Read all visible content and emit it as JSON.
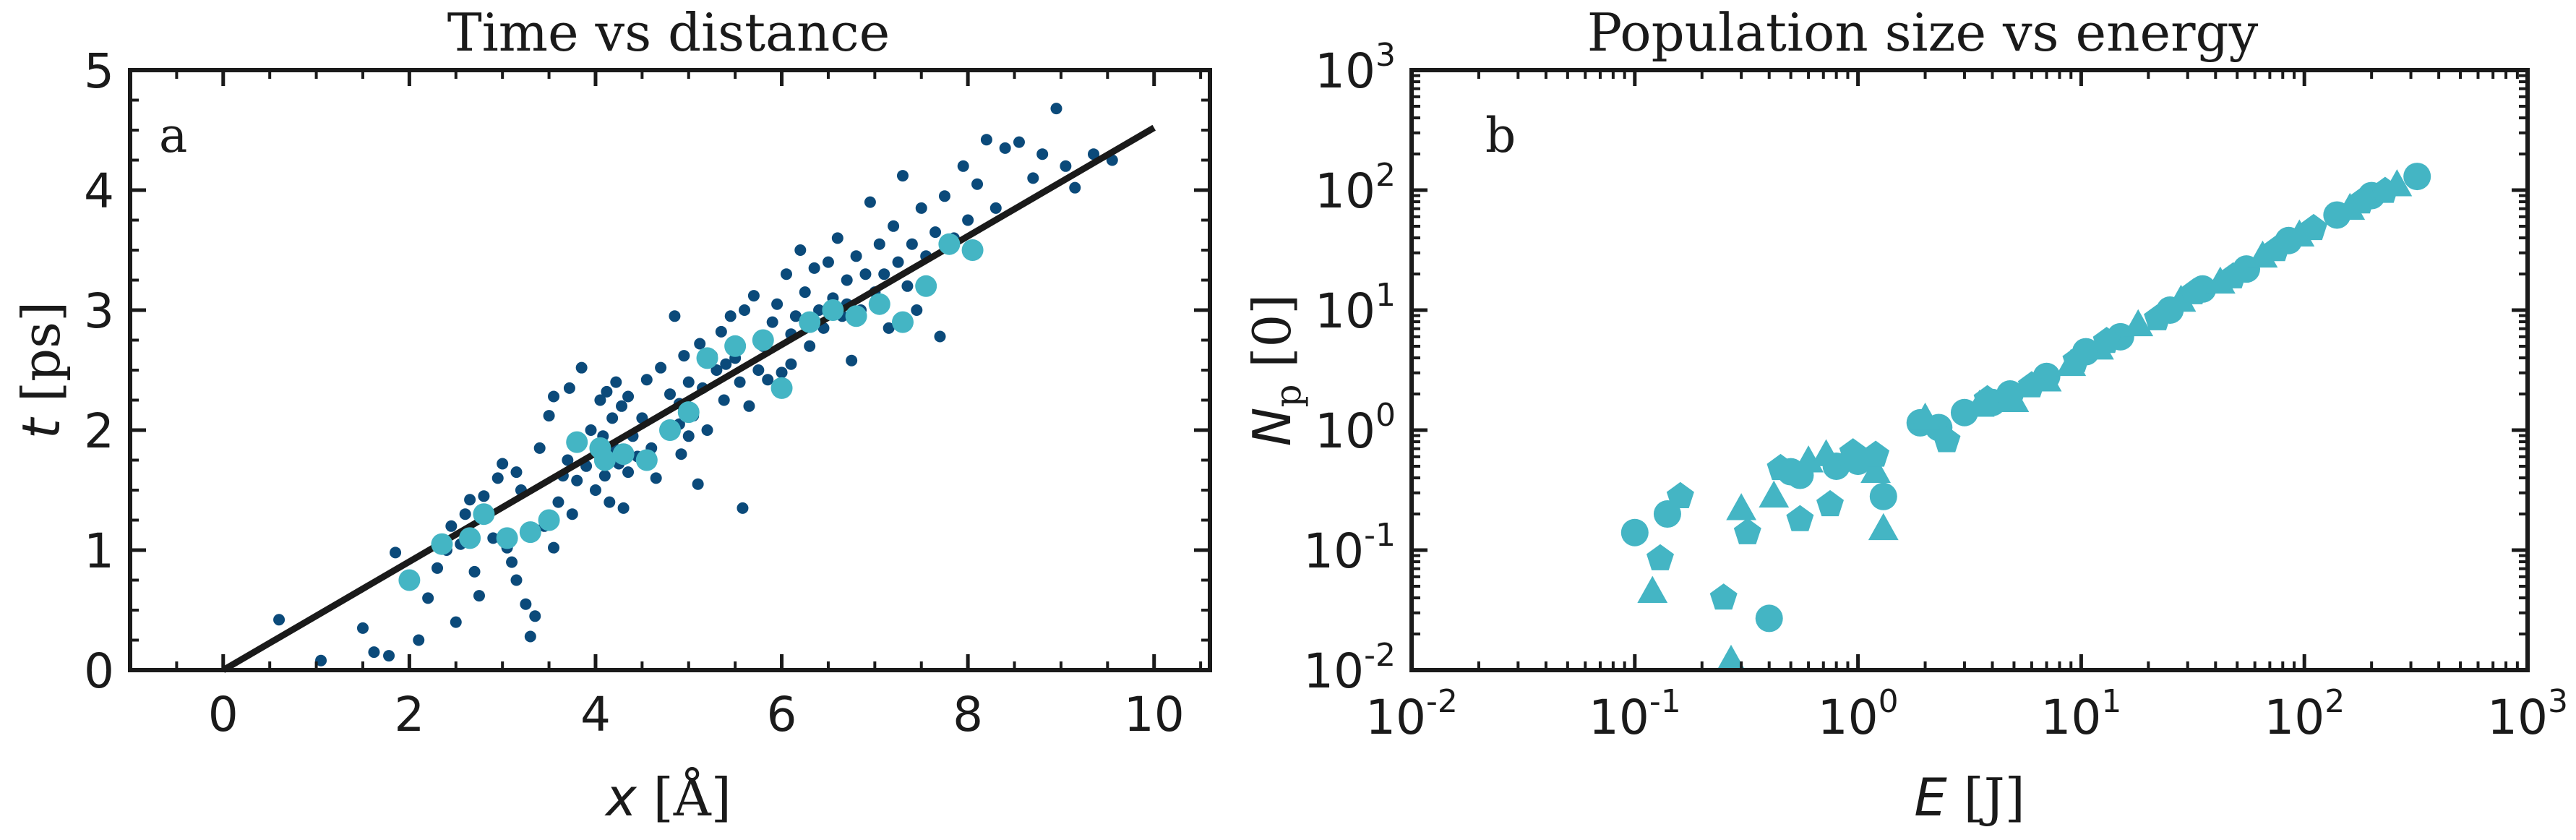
{
  "colors": {
    "dark": "#0b4a7a",
    "light": "#44b5c4",
    "line": "#1a1a1a",
    "axis": "#1a1a1a"
  },
  "chart_data": [
    {
      "type": "scatter",
      "panel_label": "a",
      "title": "Time vs distance",
      "xlabel_var": "x",
      "xlabel_unit": " [Å]",
      "ylabel_var": "t",
      "ylabel_unit": " [ps]",
      "xlim": [
        -1,
        10.6
      ],
      "ylim": [
        0,
        5
      ],
      "xticks": [
        0,
        2,
        4,
        6,
        8,
        10
      ],
      "yticks": [
        0,
        1,
        2,
        3,
        4,
        5
      ],
      "grid": false,
      "fit_line": [
        [
          0,
          0
        ],
        [
          10,
          4.52
        ]
      ],
      "series": [
        {
          "marker": "small-dot",
          "color": "#0b4a7a",
          "points": [
            [
              0.6,
              0.42
            ],
            [
              1.05,
              0.08
            ],
            [
              1.5,
              0.35
            ],
            [
              1.62,
              0.15
            ],
            [
              1.78,
              0.12
            ],
            [
              1.85,
              0.98
            ],
            [
              2.2,
              0.6
            ],
            [
              2.3,
              0.85
            ],
            [
              2.4,
              1.0
            ],
            [
              2.45,
              1.2
            ],
            [
              2.55,
              1.05
            ],
            [
              2.6,
              1.3
            ],
            [
              2.65,
              1.42
            ],
            [
              2.7,
              0.82
            ],
            [
              2.75,
              0.62
            ],
            [
              2.8,
              1.45
            ],
            [
              2.9,
              1.1
            ],
            [
              2.95,
              1.6
            ],
            [
              3.0,
              1.72
            ],
            [
              3.05,
              1.02
            ],
            [
              3.1,
              0.9
            ],
            [
              3.15,
              0.75
            ],
            [
              3.2,
              1.5
            ],
            [
              3.25,
              0.55
            ],
            [
              3.3,
              0.28
            ],
            [
              3.35,
              0.45
            ],
            [
              3.4,
              1.85
            ],
            [
              3.45,
              1.2
            ],
            [
              3.5,
              2.12
            ],
            [
              3.55,
              1.02
            ],
            [
              3.6,
              1.4
            ],
            [
              3.65,
              1.62
            ],
            [
              3.7,
              1.75
            ],
            [
              3.72,
              2.35
            ],
            [
              3.75,
              1.3
            ],
            [
              3.8,
              1.58
            ],
            [
              3.85,
              2.52
            ],
            [
              3.9,
              1.7
            ],
            [
              3.95,
              2.0
            ],
            [
              4.0,
              1.5
            ],
            [
              4.02,
              1.82
            ],
            [
              4.05,
              2.25
            ],
            [
              4.08,
              1.95
            ],
            [
              4.1,
              1.62
            ],
            [
              4.12,
              2.32
            ],
            [
              4.15,
              1.4
            ],
            [
              4.18,
              2.1
            ],
            [
              4.2,
              1.85
            ],
            [
              4.22,
              2.4
            ],
            [
              4.25,
              1.72
            ],
            [
              4.28,
              2.2
            ],
            [
              4.3,
              1.35
            ],
            [
              4.35,
              2.28
            ],
            [
              4.4,
              1.95
            ],
            [
              4.45,
              1.78
            ],
            [
              4.5,
              2.1
            ],
            [
              4.55,
              2.42
            ],
            [
              4.6,
              1.85
            ],
            [
              4.65,
              1.6
            ],
            [
              4.7,
              2.52
            ],
            [
              4.75,
              2.0
            ],
            [
              4.8,
              2.3
            ],
            [
              4.82,
              1.98
            ],
            [
              4.85,
              2.95
            ],
            [
              4.9,
              2.22
            ],
            [
              4.92,
              1.8
            ],
            [
              4.95,
              2.62
            ],
            [
              5.0,
              2.4
            ],
            [
              5.05,
              2.12
            ],
            [
              5.1,
              1.55
            ],
            [
              5.12,
              2.72
            ],
            [
              5.15,
              2.35
            ],
            [
              5.2,
              2.0
            ],
            [
              5.25,
              2.62
            ],
            [
              5.3,
              2.5
            ],
            [
              5.35,
              2.82
            ],
            [
              5.38,
              2.25
            ],
            [
              5.4,
              2.55
            ],
            [
              5.45,
              2.95
            ],
            [
              5.5,
              2.6
            ],
            [
              5.55,
              2.4
            ],
            [
              5.58,
              1.35
            ],
            [
              5.6,
              3.0
            ],
            [
              5.65,
              2.2
            ],
            [
              5.7,
              3.12
            ],
            [
              5.75,
              2.5
            ],
            [
              5.8,
              2.7
            ],
            [
              5.85,
              2.42
            ],
            [
              5.9,
              2.9
            ],
            [
              5.95,
              3.05
            ],
            [
              6.0,
              2.48
            ],
            [
              6.05,
              3.3
            ],
            [
              6.1,
              2.8
            ],
            [
              6.15,
              2.95
            ],
            [
              6.2,
              3.5
            ],
            [
              6.25,
              3.15
            ],
            [
              6.3,
              2.7
            ],
            [
              6.35,
              3.35
            ],
            [
              6.4,
              3.0
            ],
            [
              6.45,
              2.85
            ],
            [
              6.5,
              3.4
            ],
            [
              6.55,
              3.1
            ],
            [
              6.6,
              3.6
            ],
            [
              6.65,
              2.95
            ],
            [
              6.7,
              3.25
            ],
            [
              6.75,
              2.58
            ],
            [
              6.8,
              3.45
            ],
            [
              6.85,
              3.0
            ],
            [
              6.9,
              3.3
            ],
            [
              6.95,
              3.9
            ],
            [
              7.0,
              3.15
            ],
            [
              7.05,
              3.55
            ],
            [
              7.1,
              3.3
            ],
            [
              7.15,
              2.85
            ],
            [
              7.2,
              3.7
            ],
            [
              7.25,
              3.4
            ],
            [
              7.3,
              4.12
            ],
            [
              7.35,
              3.2
            ],
            [
              7.4,
              3.55
            ],
            [
              7.45,
              3.0
            ],
            [
              7.5,
              3.85
            ],
            [
              7.55,
              3.45
            ],
            [
              7.6,
              3.2
            ],
            [
              7.65,
              3.65
            ],
            [
              7.7,
              2.78
            ],
            [
              7.75,
              3.95
            ],
            [
              7.85,
              3.6
            ],
            [
              7.95,
              4.2
            ],
            [
              8.0,
              3.75
            ],
            [
              8.1,
              4.05
            ],
            [
              8.2,
              4.42
            ],
            [
              8.3,
              3.85
            ],
            [
              8.4,
              4.35
            ],
            [
              8.55,
              4.4
            ],
            [
              8.7,
              4.1
            ],
            [
              8.8,
              4.3
            ],
            [
              8.95,
              4.68
            ],
            [
              9.05,
              4.2
            ],
            [
              9.15,
              4.02
            ],
            [
              9.35,
              4.3
            ],
            [
              9.55,
              4.25
            ],
            [
              2.1,
              0.25
            ],
            [
              2.5,
              0.4
            ],
            [
              3.15,
              1.65
            ],
            [
              4.9,
              2.05
            ],
            [
              6.1,
              2.55
            ],
            [
              5.0,
              1.95
            ],
            [
              4.35,
              1.65
            ],
            [
              3.55,
              2.28
            ],
            [
              6.7,
              3.05
            ]
          ]
        },
        {
          "marker": "large-dot",
          "color": "#44b5c4",
          "points": [
            [
              2.0,
              0.75
            ],
            [
              2.35,
              1.05
            ],
            [
              2.65,
              1.1
            ],
            [
              2.8,
              1.3
            ],
            [
              3.05,
              1.1
            ],
            [
              3.3,
              1.15
            ],
            [
              3.5,
              1.25
            ],
            [
              3.8,
              1.9
            ],
            [
              4.05,
              1.85
            ],
            [
              4.1,
              1.75
            ],
            [
              4.3,
              1.8
            ],
            [
              4.55,
              1.75
            ],
            [
              4.8,
              2.0
            ],
            [
              5.0,
              2.15
            ],
            [
              5.2,
              2.6
            ],
            [
              5.5,
              2.7
            ],
            [
              5.8,
              2.75
            ],
            [
              6.0,
              2.35
            ],
            [
              6.3,
              2.9
            ],
            [
              6.55,
              3.0
            ],
            [
              6.8,
              2.95
            ],
            [
              7.05,
              3.05
            ],
            [
              7.3,
              2.9
            ],
            [
              7.55,
              3.2
            ],
            [
              7.8,
              3.55
            ],
            [
              8.05,
              3.5
            ]
          ]
        }
      ]
    },
    {
      "type": "scatter",
      "panel_label": "b",
      "title": "Population size vs energy",
      "xlabel_var": "E",
      "xlabel_unit": " [J]",
      "ylabel_var": "N",
      "ylabel_sub": "p",
      "ylabel_unit": " [0]",
      "xscale": "log",
      "yscale": "log",
      "xlim": [
        0.01,
        1000
      ],
      "ylim": [
        0.01,
        1000
      ],
      "xtick_exponents": [
        "-2",
        "-1",
        "0",
        "1",
        "2",
        "3"
      ],
      "ytick_exponents": [
        "-2",
        "-1",
        "0",
        "1",
        "2",
        "3"
      ],
      "tick_base": "10",
      "grid": false,
      "series": [
        {
          "marker": "circle",
          "color": "#44b5c4",
          "points": [
            [
              0.1,
              0.14
            ],
            [
              0.14,
              0.2
            ],
            [
              0.4,
              0.027
            ],
            [
              0.5,
              0.45
            ],
            [
              0.55,
              0.42
            ],
            [
              0.8,
              0.5
            ],
            [
              1.0,
              0.55
            ],
            [
              1.3,
              0.28
            ],
            [
              1.9,
              1.15
            ],
            [
              2.3,
              1.05
            ],
            [
              3.0,
              1.4
            ],
            [
              4.0,
              1.7
            ],
            [
              4.8,
              2.0
            ],
            [
              7.0,
              2.8
            ],
            [
              10.5,
              4.5
            ],
            [
              15.0,
              6.0
            ],
            [
              25.0,
              10.0
            ],
            [
              35.0,
              15.0
            ],
            [
              55.0,
              22.0
            ],
            [
              85.0,
              38.0
            ],
            [
              140.0,
              62.0
            ],
            [
              200.0,
              90.0
            ],
            [
              320.0,
              130.0
            ]
          ]
        },
        {
          "marker": "triangle",
          "color": "#44b5c4",
          "points": [
            [
              0.12,
              0.045
            ],
            [
              0.27,
              0.012
            ],
            [
              0.3,
              0.22
            ],
            [
              0.42,
              0.28
            ],
            [
              0.6,
              0.55
            ],
            [
              0.72,
              0.62
            ],
            [
              1.3,
              0.15
            ],
            [
              1.2,
              0.45
            ],
            [
              2.0,
              1.25
            ],
            [
              3.5,
              1.6
            ],
            [
              5.0,
              1.75
            ],
            [
              7.0,
              2.6
            ],
            [
              9.0,
              3.5
            ],
            [
              12.0,
              4.8
            ],
            [
              18.0,
              7.5
            ],
            [
              28.0,
              12.0
            ],
            [
              42.0,
              17.0
            ],
            [
              65.0,
              28.0
            ],
            [
              95.0,
              42.0
            ],
            [
              160.0,
              70.0
            ],
            [
              260.0,
              110.0
            ]
          ]
        },
        {
          "marker": "pentagon",
          "color": "#44b5c4",
          "points": [
            [
              0.13,
              0.085
            ],
            [
              0.16,
              0.28
            ],
            [
              0.25,
              0.04
            ],
            [
              0.32,
              0.14
            ],
            [
              0.45,
              0.48
            ],
            [
              0.55,
              0.18
            ],
            [
              0.75,
              0.24
            ],
            [
              0.95,
              0.65
            ],
            [
              1.2,
              0.62
            ],
            [
              2.5,
              0.82
            ],
            [
              3.8,
              1.8
            ],
            [
              6.0,
              2.35
            ],
            [
              9.5,
              3.8
            ],
            [
              13.0,
              5.5
            ],
            [
              22.0,
              8.5
            ],
            [
              32.0,
              14.0
            ],
            [
              48.0,
              19.0
            ],
            [
              75.0,
              32.0
            ],
            [
              110.0,
              48.0
            ],
            [
              180.0,
              80.0
            ],
            [
              230.0,
              98.0
            ]
          ]
        }
      ]
    }
  ]
}
